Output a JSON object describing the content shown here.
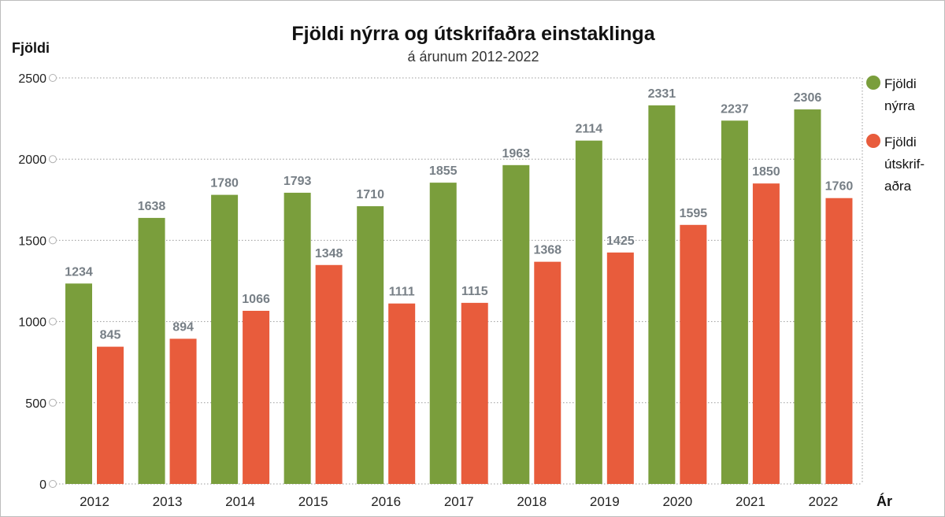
{
  "chart_data": {
    "type": "bar",
    "title": "Fjöldi nýrra og útskrifaðra einstaklinga",
    "subtitle": "á árunum 2012-2022",
    "ylabel": "Fjöldi",
    "xlabel": "Ár",
    "categories": [
      "2012",
      "2013",
      "2014",
      "2015",
      "2016",
      "2017",
      "2018",
      "2019",
      "2020",
      "2021",
      "2022"
    ],
    "yticks": [
      "0",
      "500",
      "1000",
      "1500",
      "2000",
      "2500"
    ],
    "ylim": [
      0,
      2500
    ],
    "grid": true,
    "legend_position": "right",
    "series": [
      {
        "name": "Fjöldi nýrra",
        "legend_lines": [
          "Fjöldi",
          "nýrra"
        ],
        "color": "#7a9e3c",
        "values": [
          1234,
          1638,
          1780,
          1793,
          1710,
          1855,
          1963,
          2114,
          2331,
          2237,
          2306
        ]
      },
      {
        "name": "Fjöldi útskrifaðra",
        "legend_lines": [
          "Fjöldi",
          "útskrif-",
          "aðra"
        ],
        "color": "#e85c3c",
        "values": [
          845,
          894,
          1066,
          1348,
          1111,
          1115,
          1368,
          1425,
          1595,
          1850,
          1760
        ]
      }
    ]
  }
}
